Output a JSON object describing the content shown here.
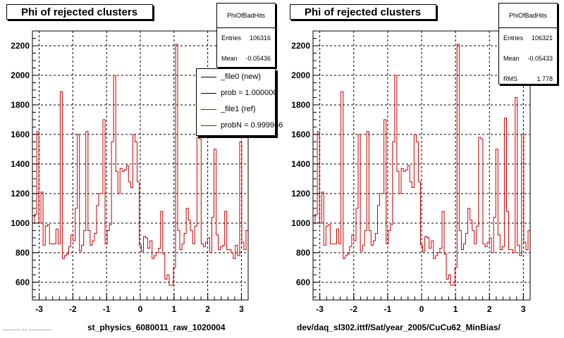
{
  "panels": [
    {
      "title": "Phi of rejected clusters",
      "stats": {
        "name": "PhiOfBadHits",
        "entries_label": "Entries",
        "entries": "106316",
        "mean_label": "Mean",
        "mean": "-0.05436"
      },
      "xtitle": "st_physics_6080011_raw_1020004"
    },
    {
      "title": "Phi of rejected clusters",
      "stats": {
        "name": "PhiOfBadHits",
        "entries_label": "Entries",
        "entries": "106321",
        "mean_label": "Mean",
        "mean": "-0.05433",
        "rms_label": "RMS",
        "rms": "1.778"
      },
      "xtitle": "dev/daq_sl302.ittf/Sat/year_2005/CuCu62_MinBias/"
    }
  ],
  "legend": {
    "entries": [
      {
        "label": "_file0 (new)",
        "color": "#000000"
      },
      {
        "label": "prob = 1.000000",
        "color": "#000000"
      },
      {
        "label": "_file1 (ref)",
        "color": "#cc0000"
      },
      {
        "label": "probN = 0.999966",
        "color": "#cc0000"
      }
    ]
  },
  "footer_text": "~~~~~~ ~~ ~~~~~~~~",
  "colors": {
    "hist": "#cc0000",
    "axis": "#000000",
    "background": "#ffffff"
  },
  "chart_data": [
    {
      "type": "bar",
      "subtype": "histogram-step",
      "title": "Phi of rejected clusters",
      "xlabel": "st_physics_6080011_raw_1020004",
      "ylabel": "",
      "xlim": [
        -3.2,
        3.2
      ],
      "ylim": [
        480,
        2300
      ],
      "xticks": [
        -3,
        -2,
        -1,
        0,
        1,
        2,
        3
      ],
      "yticks": [
        600,
        800,
        1000,
        1200,
        1400,
        1600,
        1800,
        2000,
        2200
      ],
      "grid": true,
      "values": [
        1000,
        1060,
        1620,
        1000,
        1210,
        850,
        980,
        990,
        860,
        860,
        860,
        960,
        860,
        1890,
        760,
        780,
        790,
        840,
        920,
        880,
        1100,
        1600,
        810,
        850,
        950,
        1620,
        950,
        850,
        880,
        930,
        1120,
        1200,
        1200,
        1700,
        860,
        950,
        990,
        1550,
        2000,
        1350,
        1200,
        1370,
        1350,
        1360,
        1390,
        1280,
        1240,
        1600,
        1550,
        1280,
        850,
        810,
        910,
        900,
        830,
        880,
        760,
        780,
        800,
        830,
        1080,
        790,
        620,
        650,
        580,
        580,
        700,
        2210,
        950,
        820,
        860,
        930,
        1100,
        1020,
        950,
        860,
        980,
        1580,
        1570,
        860,
        840,
        870,
        900,
        800,
        1040,
        1500,
        920,
        820,
        840,
        850,
        1080,
        820,
        820,
        800,
        760,
        850,
        780,
        1550,
        870,
        820,
        950
      ]
    },
    {
      "type": "bar",
      "subtype": "histogram-step",
      "title": "Phi of rejected clusters",
      "xlabel": "dev/daq_sl302.ittf/Sat/year_2005/CuCu62_MinBias/",
      "ylabel": "",
      "xlim": [
        -3.2,
        3.2
      ],
      "ylim": [
        480,
        2300
      ],
      "xticks": [
        -3,
        -2,
        -1,
        0,
        1,
        2,
        3
      ],
      "yticks": [
        600,
        800,
        1000,
        1200,
        1400,
        1600,
        1800,
        2000,
        2200
      ],
      "grid": true,
      "values": [
        1000,
        1060,
        1620,
        1000,
        1210,
        850,
        980,
        990,
        860,
        860,
        860,
        960,
        860,
        1890,
        760,
        780,
        790,
        840,
        920,
        880,
        1100,
        1600,
        810,
        850,
        950,
        1620,
        950,
        850,
        880,
        930,
        1120,
        1200,
        1200,
        1700,
        860,
        950,
        990,
        1550,
        2000,
        1350,
        1200,
        1370,
        1350,
        1360,
        1390,
        1280,
        1240,
        1600,
        1550,
        1280,
        850,
        810,
        910,
        900,
        830,
        880,
        760,
        780,
        800,
        830,
        1080,
        790,
        620,
        650,
        580,
        580,
        700,
        2210,
        950,
        820,
        860,
        930,
        1100,
        1020,
        950,
        860,
        980,
        1580,
        1570,
        860,
        840,
        870,
        900,
        800,
        1040,
        1500,
        920,
        820,
        840,
        1710,
        1080,
        820,
        820,
        800,
        1850,
        850,
        780,
        1600,
        870,
        820,
        950
      ]
    }
  ]
}
